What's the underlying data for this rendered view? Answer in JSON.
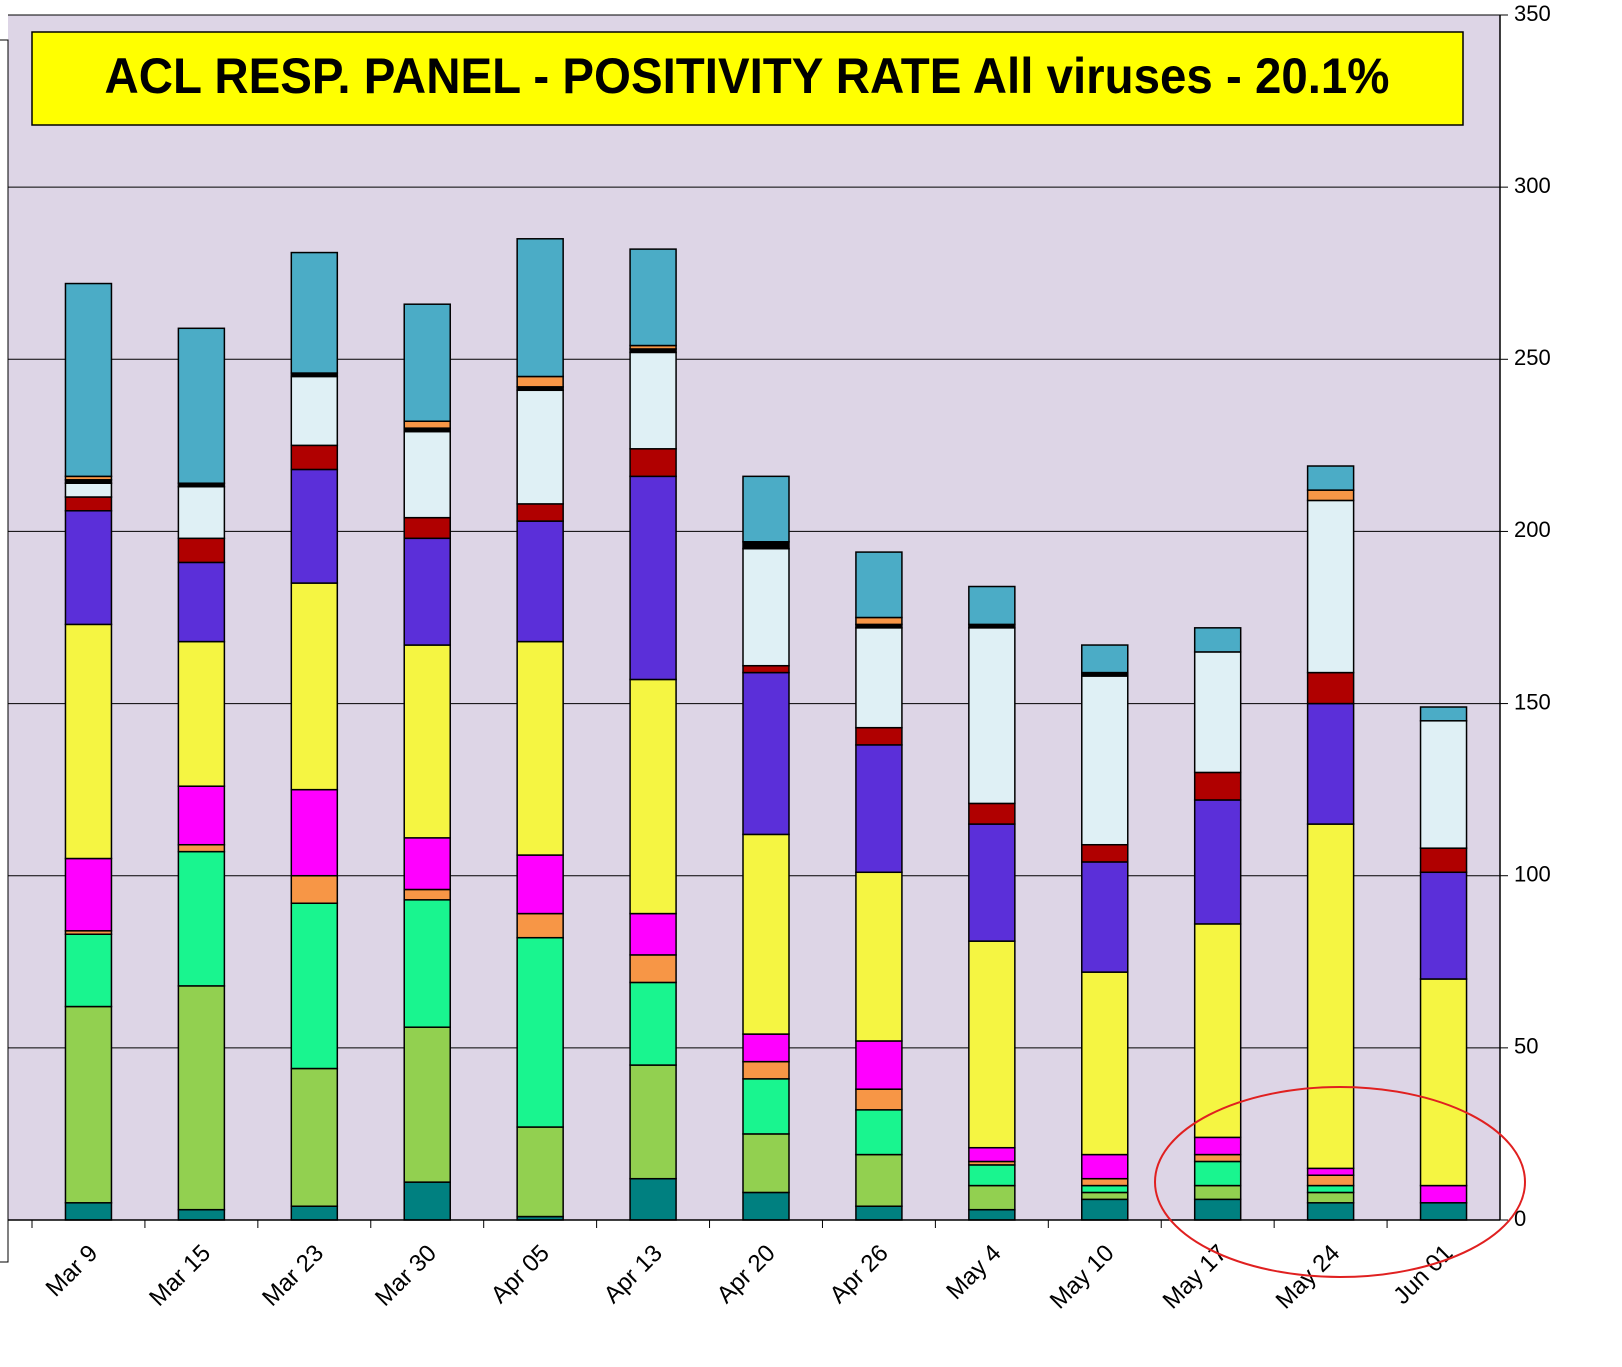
{
  "chart_data": {
    "type": "stacked_bar",
    "title": "ACL RESP. PANEL -  POSITIVITY RATE All viruses - 20.1%",
    "categories": [
      "Mar 9",
      "Mar 15",
      "Mar 23",
      "Mar 30",
      "Apr 05",
      "Apr 13",
      "Apr 20",
      "Apr 26",
      "May 4",
      "May 10",
      "May 17",
      "May 24",
      "Jun 01"
    ],
    "series": [
      {
        "color": "#008080",
        "values": [
          5,
          3,
          4,
          11,
          1,
          12,
          8,
          4,
          3,
          6,
          6,
          5,
          5
        ]
      },
      {
        "color": "#92d050",
        "values": [
          57,
          65,
          40,
          45,
          26,
          33,
          17,
          15,
          7,
          2,
          4,
          3,
          0
        ]
      },
      {
        "color": "#19f58f",
        "values": [
          21,
          39,
          48,
          37,
          55,
          24,
          16,
          13,
          6,
          2,
          7,
          2,
          0
        ]
      },
      {
        "color": "#f79646",
        "values": [
          1,
          2,
          8,
          3,
          7,
          8,
          5,
          6,
          1,
          2,
          2,
          3,
          0
        ]
      },
      {
        "color": "#ff00ff",
        "values": [
          21,
          17,
          25,
          15,
          17,
          12,
          8,
          14,
          4,
          7,
          5,
          2,
          5
        ]
      },
      {
        "color": "#f5f542",
        "values": [
          68,
          42,
          60,
          56,
          62,
          68,
          58,
          49,
          60,
          53,
          62,
          100,
          60
        ]
      },
      {
        "color": "#5b2fd9",
        "values": [
          33,
          23,
          33,
          31,
          35,
          59,
          47,
          37,
          34,
          32,
          36,
          35,
          31
        ]
      },
      {
        "color": "#b00000",
        "values": [
          4,
          7,
          7,
          6,
          5,
          8,
          2,
          5,
          6,
          5,
          8,
          9,
          7
        ]
      },
      {
        "color": "#dff0f5",
        "values": [
          4,
          15,
          20,
          25,
          33,
          28,
          34,
          29,
          51,
          49,
          35,
          50,
          37
        ]
      },
      {
        "color": "#000000",
        "values": [
          1,
          1,
          1,
          1,
          1,
          1,
          2,
          1,
          1,
          1,
          0,
          0,
          0
        ]
      },
      {
        "color": "#f79646",
        "values": [
          1,
          0,
          0,
          2,
          3,
          1,
          0,
          2,
          0,
          0,
          0,
          3,
          0
        ]
      },
      {
        "color": "#4bacc6",
        "values": [
          56,
          45,
          35,
          34,
          40,
          28,
          19,
          19,
          11,
          8,
          7,
          7,
          4
        ]
      }
    ],
    "ylim": [
      0,
      350
    ],
    "yticks": [
      0,
      50,
      100,
      150,
      200,
      250,
      300,
      350
    ],
    "grid": true
  }
}
